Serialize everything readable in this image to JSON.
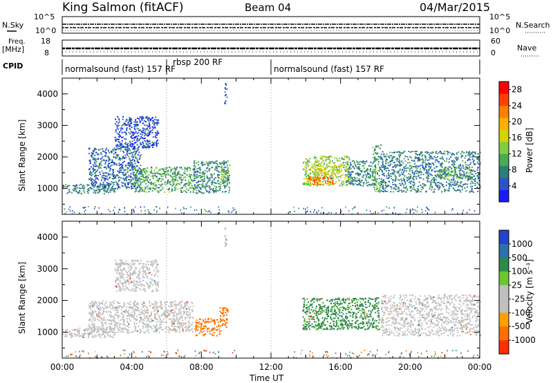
{
  "header": {
    "station": "King Salmon (fitACF)",
    "beam": "Beam 04",
    "date": "04/Mar/2015"
  },
  "top_panels": {
    "nsky_label": "N.Sky",
    "nsky_ticks": [
      "10^5",
      "10^0"
    ],
    "nsearch_label": "N.Search",
    "nsearch_ticks": [
      "10^5",
      "10^0"
    ],
    "freq_label": "Freq.",
    "freq_unit": "[MHz]",
    "freq_ticks": [
      "18",
      "8"
    ],
    "nave_label": "Nave",
    "nave_ticks": [
      "60",
      "0"
    ],
    "cpid_label": "CPID",
    "cpid_segments": [
      {
        "start": 0.0,
        "end": 6.0,
        "label": "normalsound (fast) 157 RF"
      },
      {
        "start": 6.0,
        "end": 12.0,
        "label": "rbsp 200 RF"
      },
      {
        "start": 12.0,
        "end": 24.0,
        "label": "normalsound (fast) 157 RF"
      }
    ]
  },
  "colors": {
    "power_scale": [
      "#1a1aff",
      "#2a55c8",
      "#2e7d7a",
      "#4aaa55",
      "#7fd040",
      "#d4d400",
      "#ffb000",
      "#ff8000",
      "#ff4000",
      "#ff0000"
    ],
    "velocity_scale": [
      "#2244cc",
      "#2f6fb0",
      "#2e8a4a",
      "#6cc830",
      "#c0c0c0",
      "#c0c0c0",
      "#ffa000",
      "#ff7000",
      "#ff3000",
      "#ff0000"
    ]
  },
  "chart_data": [
    {
      "type": "heatmap",
      "panel": "power",
      "ylabel": "Slant Range [km]",
      "xlim": [
        0,
        24
      ],
      "ylim": [
        180,
        4500
      ],
      "y_ticks": [
        "1000",
        "2000",
        "3000",
        "4000"
      ],
      "colorbar_label": "Power [dB]",
      "colorbar_ticks": [
        "4",
        "8",
        "12",
        "16",
        "20",
        "24",
        "28"
      ],
      "colorbar_range": [
        0,
        30
      ],
      "regions": [
        {
          "t0": 0.0,
          "t1": 3.0,
          "r0": 850,
          "r1": 1150,
          "value": 8
        },
        {
          "t0": 1.5,
          "t1": 4.5,
          "r0": 1000,
          "r1": 2300,
          "value": 6
        },
        {
          "t0": 3.0,
          "t1": 5.5,
          "r0": 2300,
          "r1": 3300,
          "value": 4
        },
        {
          "t0": 4.0,
          "t1": 7.5,
          "r0": 900,
          "r1": 1700,
          "value": 10
        },
        {
          "t0": 7.5,
          "t1": 9.6,
          "r0": 850,
          "r1": 1900,
          "value": 8
        },
        {
          "t0": 9.1,
          "t1": 9.5,
          "r0": 1100,
          "r1": 1700,
          "value": 14
        },
        {
          "t0": 13.8,
          "t1": 16.5,
          "r0": 1100,
          "r1": 2050,
          "value": 14
        },
        {
          "t0": 14.1,
          "t1": 15.6,
          "r0": 1120,
          "r1": 1400,
          "value": 24
        },
        {
          "t0": 14.5,
          "t1": 16.0,
          "r0": 1400,
          "r1": 1750,
          "value": 17
        },
        {
          "t0": 16.3,
          "t1": 18.0,
          "r0": 1100,
          "r1": 1900,
          "value": 8
        },
        {
          "t0": 17.8,
          "t1": 18.3,
          "r0": 900,
          "r1": 2400,
          "value": 10
        },
        {
          "t0": 18.3,
          "t1": 24.0,
          "r0": 900,
          "r1": 2200,
          "value": 7
        },
        {
          "t0": 21.5,
          "t1": 23.5,
          "r0": 1300,
          "r1": 1700,
          "value": 11
        },
        {
          "t0": 9.3,
          "t1": 9.45,
          "r0": 3700,
          "r1": 4350,
          "value": 4
        }
      ]
    },
    {
      "type": "heatmap",
      "panel": "velocity",
      "xlabel": "Time UT",
      "ylabel": "Slant Range [km]",
      "xlim": [
        0,
        24
      ],
      "ylim": [
        180,
        4500
      ],
      "x_ticks": [
        "00:00",
        "04:00",
        "08:00",
        "12:00",
        "16:00",
        "20:00",
        "00:00"
      ],
      "y_ticks": [
        "1000",
        "2000",
        "3000",
        "4000"
      ],
      "colorbar_label": "Velocity [m s⁻¹]",
      "colorbar_ticks": [
        "1000",
        "500",
        "100",
        "25",
        "-25",
        "-100",
        "-500",
        "-1000"
      ],
      "colorbar_range": [
        -1000,
        1000
      ],
      "regions": [
        {
          "t0": 0.0,
          "t1": 3.0,
          "r0": 850,
          "r1": 1150,
          "value": 0
        },
        {
          "t0": 1.5,
          "t1": 7.5,
          "r0": 1000,
          "r1": 2000,
          "value": 5
        },
        {
          "t0": 3.0,
          "t1": 5.5,
          "r0": 2300,
          "r1": 3300,
          "value": 0
        },
        {
          "t0": 7.6,
          "t1": 9.1,
          "r0": 900,
          "r1": 1450,
          "value": -150
        },
        {
          "t0": 9.0,
          "t1": 9.5,
          "r0": 1150,
          "r1": 1800,
          "value": -300
        },
        {
          "t0": 13.8,
          "t1": 18.2,
          "r0": 1100,
          "r1": 2100,
          "value": 150
        },
        {
          "t0": 18.3,
          "t1": 24.0,
          "r0": 900,
          "r1": 2200,
          "value": 0
        },
        {
          "t0": 9.3,
          "t1": 9.45,
          "r0": 3700,
          "r1": 4350,
          "value": 20
        }
      ]
    }
  ]
}
